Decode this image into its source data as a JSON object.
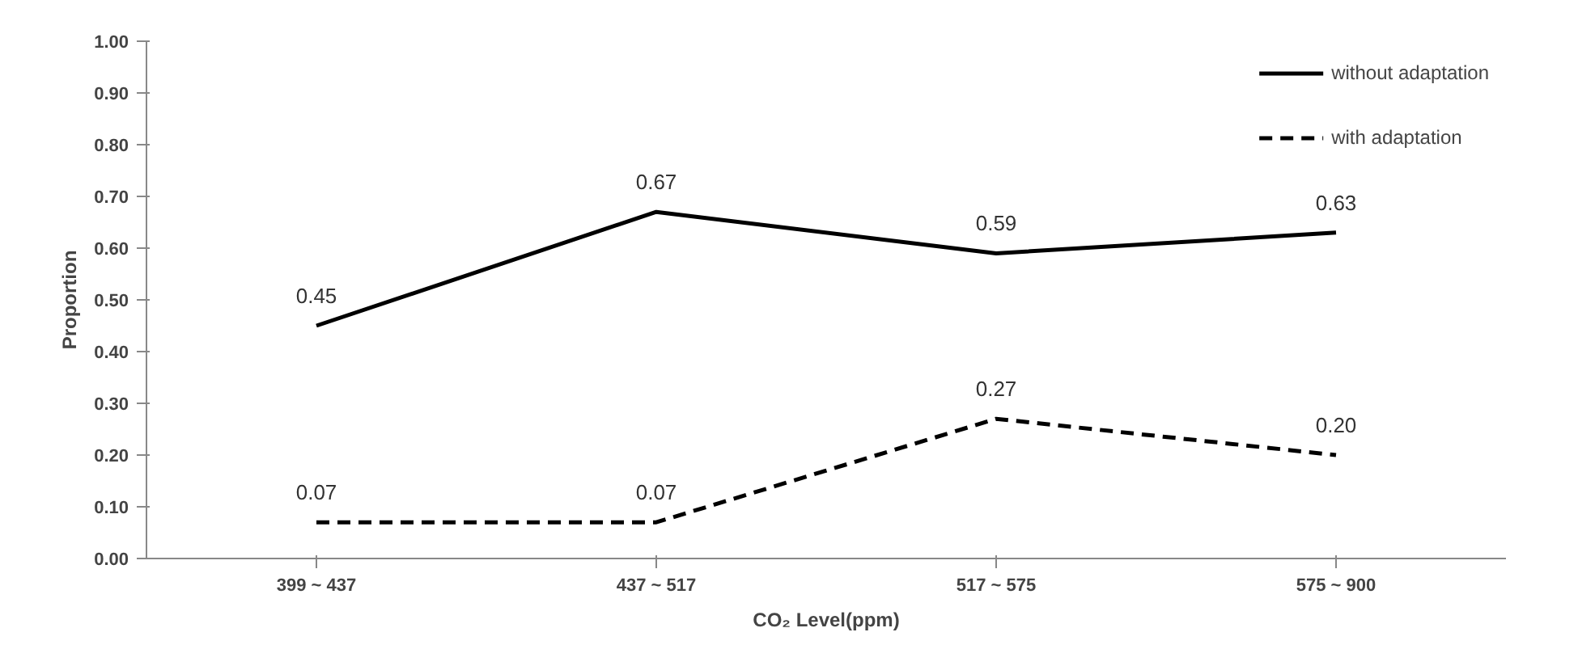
{
  "chart_data": {
    "type": "line",
    "xlabel": "CO₂ Level(ppm)",
    "ylabel": "Proportion",
    "categories": [
      "399 ~ 437",
      "437 ~ 517",
      "517 ~ 575",
      "575 ~ 900"
    ],
    "ylim": [
      0,
      1
    ],
    "yticks": [
      {
        "value": 0,
        "label": "0.00"
      },
      {
        "value": 0.1,
        "label": "0.10"
      },
      {
        "value": 0.2,
        "label": "0.20"
      },
      {
        "value": 0.3,
        "label": "0.30"
      },
      {
        "value": 0.4,
        "label": "0.40"
      },
      {
        "value": 0.5,
        "label": "0.50"
      },
      {
        "value": 0.6,
        "label": "0.60"
      },
      {
        "value": 0.7,
        "label": "0.70"
      },
      {
        "value": 0.8,
        "label": "0.80"
      },
      {
        "value": 0.9,
        "label": "0.90"
      },
      {
        "value": 1,
        "label": "1.00"
      }
    ],
    "series": [
      {
        "name": "without adaptation",
        "color": "#000000",
        "line_style": "solid",
        "values": [
          0.45,
          0.67,
          0.59,
          0.63
        ],
        "value_labels": [
          "0.45",
          "0.67",
          "0.59",
          "0.63"
        ]
      },
      {
        "name": "with adaptation",
        "color": "#000000",
        "line_style": "dashed",
        "values": [
          0.07,
          0.07,
          0.27,
          0.2
        ],
        "value_labels": [
          "0.07",
          "0.07",
          "0.27",
          "0.20"
        ]
      }
    ],
    "grid": false,
    "legend": "top right",
    "marker": "none"
  }
}
